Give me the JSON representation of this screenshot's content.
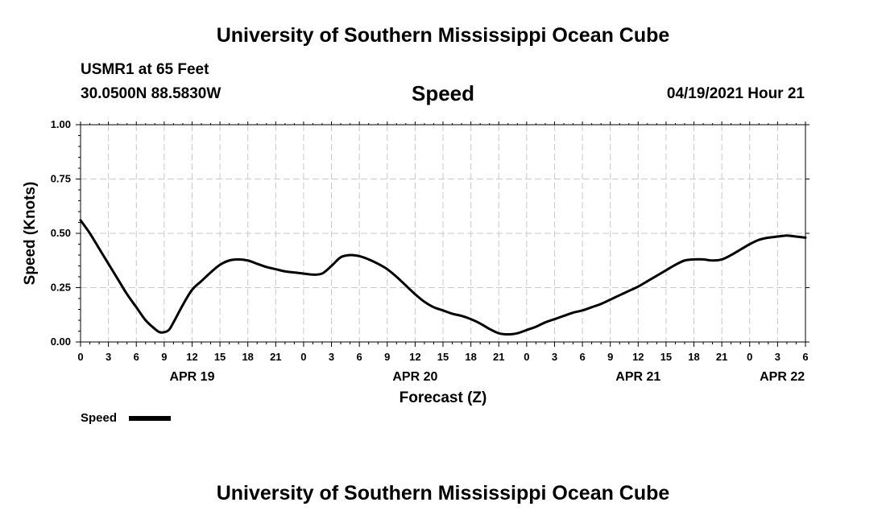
{
  "header": {
    "title": "University of Southern Mississippi Ocean Cube",
    "station": "USMR1 at 65 Feet",
    "coords": "30.0500N  88.5830W",
    "chart_title": "Speed",
    "timestamp": "04/19/2021 Hour 21"
  },
  "footer": {
    "title": "University of Southern Mississippi Ocean Cube"
  },
  "chart_data": {
    "type": "line",
    "title": "Speed",
    "xlabel": "Forecast (Z)",
    "ylabel": "Speed (Knots)",
    "xlim": [
      0,
      78
    ],
    "ylim": [
      0,
      1
    ],
    "grid": true,
    "yticks": [
      0,
      0.25,
      0.5,
      0.75,
      1
    ],
    "ytick_labels": [
      "0.00",
      "0.25",
      "0.50",
      "0.75",
      "1.00"
    ],
    "xticks": [
      0,
      3,
      6,
      9,
      12,
      15,
      18,
      21,
      24,
      27,
      30,
      33,
      36,
      39,
      42,
      45,
      48,
      51,
      54,
      57,
      60,
      63,
      66,
      69,
      72,
      75,
      78
    ],
    "xtick_labels": [
      "0",
      "3",
      "6",
      "9",
      "12",
      "15",
      "18",
      "21",
      "0",
      "3",
      "6",
      "9",
      "12",
      "15",
      "18",
      "21",
      "0",
      "3",
      "6",
      "9",
      "12",
      "15",
      "18",
      "21",
      "0",
      "3",
      "6"
    ],
    "date_labels": [
      {
        "label": "APR 19",
        "hour": 12
      },
      {
        "label": "APR 20",
        "hour": 36
      },
      {
        "label": "APR 21",
        "hour": 60
      },
      {
        "label": "APR 22",
        "hour": 75.5
      }
    ],
    "legend": {
      "label": "Speed",
      "position": "bottom-left"
    },
    "series": [
      {
        "name": "Speed",
        "color": "#000000",
        "x": [
          0,
          1,
          2,
          3,
          4,
          5,
          6,
          7,
          8,
          8.5,
          9,
          9.5,
          10,
          11,
          12,
          13,
          14,
          15,
          16,
          17,
          18,
          19,
          20,
          21,
          22,
          23,
          24,
          25,
          26,
          27,
          28,
          29,
          30,
          31,
          32,
          33,
          34,
          35,
          36,
          37,
          38,
          39,
          40,
          41,
          42,
          43,
          44,
          45,
          46,
          47,
          48,
          49,
          50,
          51,
          52,
          53,
          54,
          55,
          56,
          57,
          58,
          59,
          60,
          61,
          62,
          63,
          64,
          65,
          66,
          67,
          68,
          69,
          70,
          71,
          72,
          73,
          74,
          75,
          76,
          77,
          78
        ],
        "values": [
          0.56,
          0.5,
          0.43,
          0.36,
          0.29,
          0.22,
          0.16,
          0.1,
          0.06,
          0.045,
          0.045,
          0.055,
          0.09,
          0.17,
          0.24,
          0.28,
          0.32,
          0.355,
          0.375,
          0.38,
          0.375,
          0.36,
          0.345,
          0.335,
          0.325,
          0.32,
          0.315,
          0.31,
          0.315,
          0.35,
          0.39,
          0.4,
          0.395,
          0.38,
          0.36,
          0.335,
          0.3,
          0.26,
          0.22,
          0.185,
          0.16,
          0.145,
          0.13,
          0.12,
          0.105,
          0.085,
          0.06,
          0.04,
          0.035,
          0.04,
          0.055,
          0.07,
          0.09,
          0.105,
          0.12,
          0.135,
          0.145,
          0.16,
          0.175,
          0.195,
          0.215,
          0.235,
          0.255,
          0.28,
          0.305,
          0.33,
          0.355,
          0.375,
          0.38,
          0.38,
          0.375,
          0.38,
          0.4,
          0.425,
          0.45,
          0.47,
          0.48,
          0.485,
          0.49,
          0.485,
          0.48
        ]
      }
    ]
  }
}
